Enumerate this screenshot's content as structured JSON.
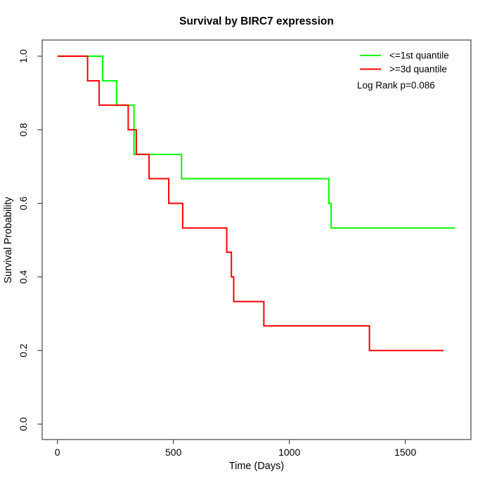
{
  "page": {
    "background": "#ffffff"
  },
  "chart_data": {
    "type": "line",
    "subtype": "kaplan-meier-step-curve",
    "title": "Survival by BIRC7 expression",
    "xlabel": "Time (Days)",
    "ylabel": "Survival Probability",
    "x_ticks": [
      0,
      500,
      1000,
      1500
    ],
    "x_tick_labels": [
      "0",
      "500",
      "1000",
      "1500"
    ],
    "y_ticks": [
      0.0,
      0.2,
      0.4,
      0.6,
      0.8,
      1.0
    ],
    "y_tick_labels": [
      "0.0",
      "0.2",
      "0.4",
      "0.6",
      "0.8",
      "1.0"
    ],
    "xlim": [
      -70,
      1800
    ],
    "ylim": [
      -0.04,
      1.04
    ],
    "grid": false,
    "axis_color": "#444444",
    "legend_position": "top-right",
    "annotation": "Log Rank p=0.086",
    "series": [
      {
        "name": "<=1st quantile",
        "color": "#00ff00",
        "steps": [
          [
            0,
            1.0
          ],
          [
            195,
            0.933
          ],
          [
            255,
            0.867
          ],
          [
            330,
            0.733
          ],
          [
            535,
            0.667
          ],
          [
            1170,
            0.6
          ],
          [
            1180,
            0.533
          ],
          [
            1715,
            0.533
          ]
        ]
      },
      {
        "name": ">=3d quantile",
        "color": "#ff0000",
        "steps": [
          [
            0,
            1.0
          ],
          [
            130,
            0.933
          ],
          [
            180,
            0.867
          ],
          [
            305,
            0.8
          ],
          [
            340,
            0.733
          ],
          [
            395,
            0.667
          ],
          [
            480,
            0.6
          ],
          [
            540,
            0.533
          ],
          [
            730,
            0.467
          ],
          [
            750,
            0.4
          ],
          [
            760,
            0.333
          ],
          [
            890,
            0.267
          ],
          [
            1345,
            0.2
          ],
          [
            1665,
            0.2
          ]
        ]
      }
    ]
  }
}
